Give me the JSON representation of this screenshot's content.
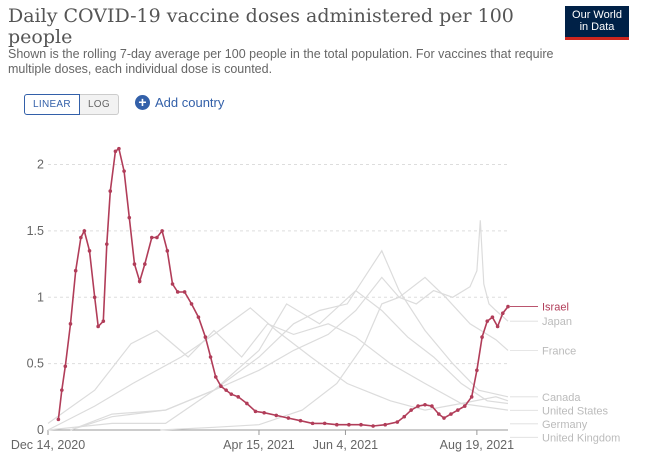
{
  "header": {
    "title": "Daily COVID-19 vaccine doses administered per 100 people",
    "subtitle": "Shown is the rolling 7-day average per 100 people in the total population. For vaccines that require multiple doses, each individual dose is counted.",
    "logo_line1": "Our World",
    "logo_line2": "in Data"
  },
  "controls": {
    "linear_label": "LINEAR",
    "log_label": "LOG",
    "add_country_label": "Add country"
  },
  "colors": {
    "highlight": "#b13d59",
    "muted": "#dcdcdc",
    "highlight_label": "#b13d59",
    "muted_label": "#bbbbbb"
  },
  "chart_data": {
    "type": "line",
    "title": "Daily COVID-19 vaccine doses administered per 100 people",
    "ylim": [
      0,
      2.2
    ],
    "xlim": [
      "2020-12-14",
      "2021-09-06"
    ],
    "y_ticks": [
      "0",
      "0.5",
      "1",
      "1.5",
      "2"
    ],
    "y_tick_values": [
      0,
      0.5,
      1,
      1.5,
      2
    ],
    "x_ticks": [
      "Dec 14, 2020",
      "Apr 15, 2021",
      "Jun 4, 2021",
      "Aug 19, 2021"
    ],
    "x_tick_dates": [
      "2020-12-14",
      "2021-04-15",
      "2021-06-04",
      "2021-08-19"
    ],
    "grid": true,
    "legend": "right",
    "series": [
      {
        "name": "Israel",
        "highlighted": true,
        "points": [
          [
            "2020-12-20",
            0.08
          ],
          [
            "2020-12-22",
            0.3
          ],
          [
            "2020-12-24",
            0.48
          ],
          [
            "2020-12-27",
            0.8
          ],
          [
            "2020-12-30",
            1.2
          ],
          [
            "2021-01-02",
            1.45
          ],
          [
            "2021-01-04",
            1.5
          ],
          [
            "2021-01-07",
            1.35
          ],
          [
            "2021-01-10",
            1.0
          ],
          [
            "2021-01-12",
            0.78
          ],
          [
            "2021-01-15",
            0.82
          ],
          [
            "2021-01-17",
            1.4
          ],
          [
            "2021-01-19",
            1.8
          ],
          [
            "2021-01-22",
            2.1
          ],
          [
            "2021-01-24",
            2.12
          ],
          [
            "2021-01-27",
            1.95
          ],
          [
            "2021-01-30",
            1.6
          ],
          [
            "2021-02-02",
            1.25
          ],
          [
            "2021-02-05",
            1.12
          ],
          [
            "2021-02-08",
            1.25
          ],
          [
            "2021-02-12",
            1.45
          ],
          [
            "2021-02-15",
            1.45
          ],
          [
            "2021-02-18",
            1.5
          ],
          [
            "2021-02-21",
            1.35
          ],
          [
            "2021-02-24",
            1.1
          ],
          [
            "2021-02-27",
            1.04
          ],
          [
            "2021-03-03",
            1.04
          ],
          [
            "2021-03-07",
            0.95
          ],
          [
            "2021-03-11",
            0.85
          ],
          [
            "2021-03-15",
            0.7
          ],
          [
            "2021-03-18",
            0.55
          ],
          [
            "2021-03-21",
            0.4
          ],
          [
            "2021-03-24",
            0.33
          ],
          [
            "2021-03-27",
            0.3
          ],
          [
            "2021-03-30",
            0.27
          ],
          [
            "2021-04-03",
            0.25
          ],
          [
            "2021-04-08",
            0.2
          ],
          [
            "2021-04-13",
            0.14
          ],
          [
            "2021-04-18",
            0.13
          ],
          [
            "2021-04-25",
            0.11
          ],
          [
            "2021-05-02",
            0.09
          ],
          [
            "2021-05-09",
            0.07
          ],
          [
            "2021-05-16",
            0.05
          ],
          [
            "2021-05-23",
            0.05
          ],
          [
            "2021-05-30",
            0.04
          ],
          [
            "2021-06-06",
            0.04
          ],
          [
            "2021-06-13",
            0.04
          ],
          [
            "2021-06-20",
            0.03
          ],
          [
            "2021-06-27",
            0.04
          ],
          [
            "2021-07-04",
            0.06
          ],
          [
            "2021-07-08",
            0.1
          ],
          [
            "2021-07-12",
            0.15
          ],
          [
            "2021-07-16",
            0.18
          ],
          [
            "2021-07-20",
            0.19
          ],
          [
            "2021-07-24",
            0.18
          ],
          [
            "2021-07-28",
            0.12
          ],
          [
            "2021-07-31",
            0.09
          ],
          [
            "2021-08-04",
            0.12
          ],
          [
            "2021-08-08",
            0.15
          ],
          [
            "2021-08-12",
            0.18
          ],
          [
            "2021-08-16",
            0.25
          ],
          [
            "2021-08-19",
            0.45
          ],
          [
            "2021-08-22",
            0.7
          ],
          [
            "2021-08-25",
            0.82
          ],
          [
            "2021-08-28",
            0.85
          ],
          [
            "2021-08-31",
            0.78
          ],
          [
            "2021-09-03",
            0.88
          ],
          [
            "2021-09-06",
            0.93
          ]
        ]
      },
      {
        "name": "Japan",
        "highlighted": false,
        "points": [
          [
            "2021-02-17",
            0.0
          ],
          [
            "2021-03-20",
            0.02
          ],
          [
            "2021-04-15",
            0.04
          ],
          [
            "2021-05-10",
            0.15
          ],
          [
            "2021-05-30",
            0.35
          ],
          [
            "2021-06-15",
            0.65
          ],
          [
            "2021-06-25",
            0.95
          ],
          [
            "2021-07-05",
            1.0
          ],
          [
            "2021-07-15",
            0.95
          ],
          [
            "2021-07-25",
            1.05
          ],
          [
            "2021-08-05",
            1.0
          ],
          [
            "2021-08-15",
            1.08
          ],
          [
            "2021-08-19",
            1.2
          ],
          [
            "2021-08-21",
            1.58
          ],
          [
            "2021-08-23",
            1.1
          ],
          [
            "2021-08-26",
            0.95
          ],
          [
            "2021-08-30",
            0.9
          ],
          [
            "2021-09-06",
            0.82
          ]
        ]
      },
      {
        "name": "France",
        "highlighted": false,
        "points": [
          [
            "2020-12-27",
            0.0
          ],
          [
            "2021-01-20",
            0.1
          ],
          [
            "2021-02-20",
            0.15
          ],
          [
            "2021-03-20",
            0.3
          ],
          [
            "2021-04-15",
            0.45
          ],
          [
            "2021-05-05",
            0.6
          ],
          [
            "2021-05-25",
            0.72
          ],
          [
            "2021-06-10",
            0.9
          ],
          [
            "2021-06-25",
            1.15
          ],
          [
            "2021-07-05",
            1.0
          ],
          [
            "2021-07-20",
            1.15
          ],
          [
            "2021-08-01",
            1.0
          ],
          [
            "2021-08-15",
            0.8
          ],
          [
            "2021-08-30",
            0.68
          ],
          [
            "2021-09-06",
            0.6
          ]
        ]
      },
      {
        "name": "Canada",
        "highlighted": false,
        "points": [
          [
            "2020-12-14",
            0.0
          ],
          [
            "2021-01-20",
            0.05
          ],
          [
            "2021-02-20",
            0.05
          ],
          [
            "2021-03-20",
            0.3
          ],
          [
            "2021-04-15",
            0.55
          ],
          [
            "2021-05-05",
            0.8
          ],
          [
            "2021-05-20",
            0.9
          ],
          [
            "2021-06-05",
            0.95
          ],
          [
            "2021-06-25",
            1.35
          ],
          [
            "2021-07-05",
            1.05
          ],
          [
            "2021-07-20",
            0.75
          ],
          [
            "2021-08-05",
            0.5
          ],
          [
            "2021-08-20",
            0.3
          ],
          [
            "2021-09-06",
            0.25
          ]
        ]
      },
      {
        "name": "Germany",
        "highlighted": false,
        "points": [
          [
            "2020-12-27",
            0.0
          ],
          [
            "2021-01-20",
            0.12
          ],
          [
            "2021-02-20",
            0.15
          ],
          [
            "2021-03-20",
            0.3
          ],
          [
            "2021-04-15",
            0.6
          ],
          [
            "2021-05-01",
            0.95
          ],
          [
            "2021-05-20",
            0.8
          ],
          [
            "2021-06-10",
            1.05
          ],
          [
            "2021-06-25",
            0.9
          ],
          [
            "2021-07-10",
            0.7
          ],
          [
            "2021-07-25",
            0.55
          ],
          [
            "2021-08-10",
            0.35
          ],
          [
            "2021-08-25",
            0.22
          ],
          [
            "2021-09-06",
            0.2
          ]
        ]
      },
      {
        "name": "United Kingdom",
        "highlighted": false,
        "points": [
          [
            "2020-12-14",
            0.05
          ],
          [
            "2021-01-10",
            0.3
          ],
          [
            "2021-01-31",
            0.65
          ],
          [
            "2021-02-15",
            0.75
          ],
          [
            "2021-03-05",
            0.55
          ],
          [
            "2021-03-20",
            0.75
          ],
          [
            "2021-04-05",
            0.55
          ],
          [
            "2021-04-20",
            0.8
          ],
          [
            "2021-05-05",
            0.72
          ],
          [
            "2021-05-25",
            0.8
          ],
          [
            "2021-06-10",
            0.7
          ],
          [
            "2021-06-30",
            0.5
          ],
          [
            "2021-07-20",
            0.35
          ],
          [
            "2021-08-10",
            0.2
          ],
          [
            "2021-09-06",
            0.15
          ]
        ]
      },
      {
        "name": "United States",
        "highlighted": false,
        "points": [
          [
            "2020-12-14",
            0.0
          ],
          [
            "2021-01-10",
            0.18
          ],
          [
            "2021-02-01",
            0.35
          ],
          [
            "2021-03-01",
            0.55
          ],
          [
            "2021-03-20",
            0.72
          ],
          [
            "2021-04-10",
            0.92
          ],
          [
            "2021-04-25",
            0.75
          ],
          [
            "2021-05-15",
            0.55
          ],
          [
            "2021-06-05",
            0.35
          ],
          [
            "2021-06-30",
            0.22
          ],
          [
            "2021-07-20",
            0.15
          ],
          [
            "2021-08-10",
            0.2
          ],
          [
            "2021-08-30",
            0.25
          ],
          [
            "2021-09-06",
            0.22
          ]
        ]
      }
    ]
  }
}
